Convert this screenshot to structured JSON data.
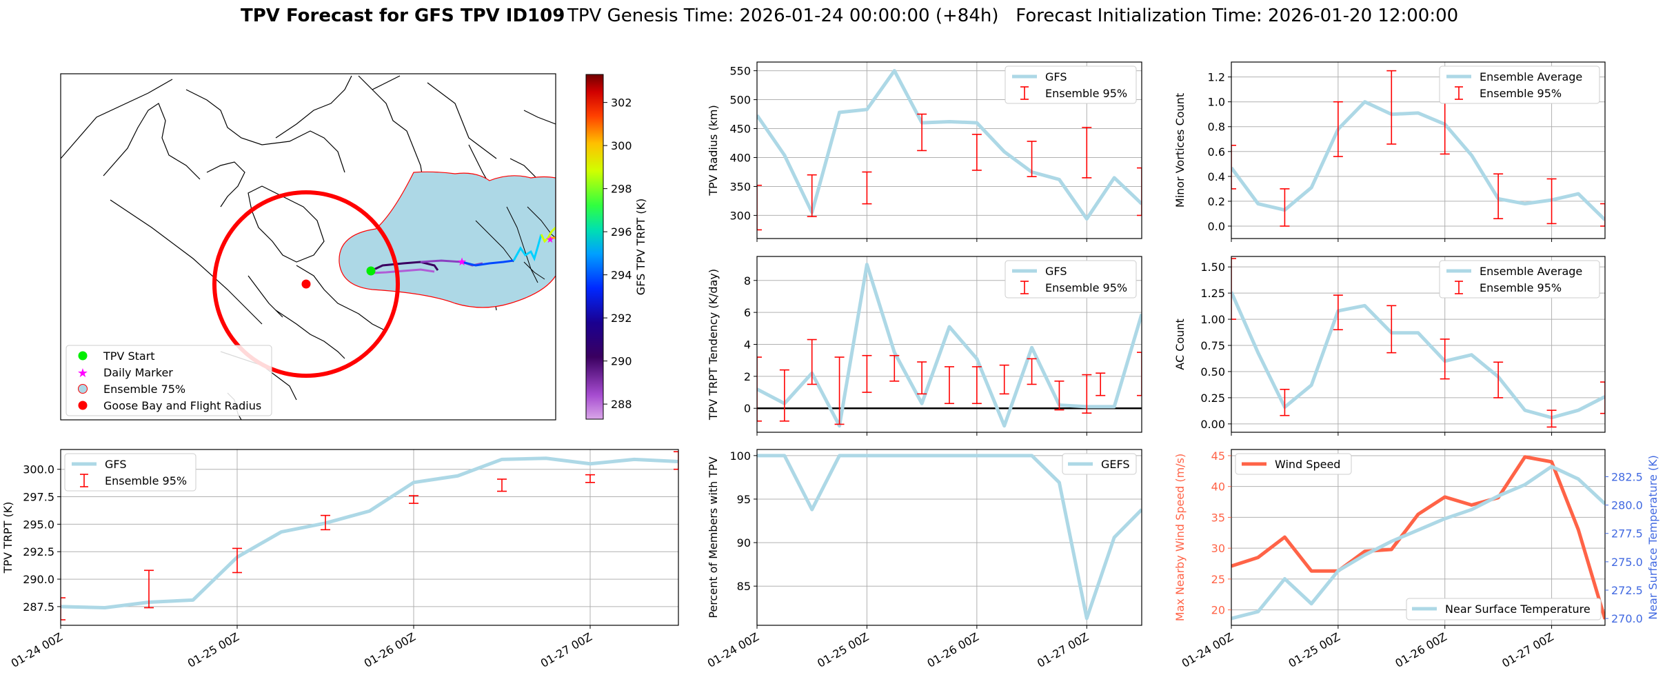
{
  "header": {
    "title_bold": "TPV Forecast for GFS TPV ID109",
    "title_rest": "TPV Genesis Time: 2026-01-24 00:00:00 (+84h)   Forecast Initialization Time: 2026-01-20 12:00:00"
  },
  "colors": {
    "gfs_line": "#add8e6",
    "ensemble_bar": "#ff0000",
    "wind_line": "#ff6347",
    "temp_axis": "#4169e1",
    "goose_bay": "#ff0000",
    "tpv_start": "#00ee00",
    "daily_marker": "#ff00ff",
    "ensemble_fill": "#add8e6"
  },
  "map": {
    "legend": {
      "tpv_start": "TPV Start",
      "daily_marker": "Daily Marker",
      "ensemble_75": "Ensemble 75%",
      "goose_bay": "Goose Bay and Flight Radius"
    },
    "colorbar": {
      "label": "GFS TPV TRPT (K)",
      "ticks": [
        "288",
        "290",
        "292",
        "294",
        "296",
        "298",
        "300",
        "302"
      ],
      "vmin": 287.3,
      "vmax": 303.3
    }
  },
  "x_ticks": [
    "01-24 00Z",
    "01-25 00Z",
    "01-26 00Z",
    "01-27 00Z"
  ],
  "chart_data": [
    {
      "id": "radius",
      "type": "line",
      "ylabel": "TPV Radius (km)",
      "ylim": [
        260,
        565
      ],
      "yticks": [
        "300",
        "350",
        "400",
        "450",
        "500",
        "550"
      ],
      "ytick_values": [
        300,
        350,
        400,
        450,
        500,
        550
      ],
      "x": [
        0,
        0.25,
        0.5,
        0.75,
        1,
        1.25,
        1.5,
        1.75,
        2,
        2.25,
        2.5,
        2.75,
        3,
        3.25,
        3.5
      ],
      "series": [
        {
          "name": "GFS",
          "values": [
            473,
            404,
            305,
            478,
            483,
            550,
            460,
            462,
            460,
            410,
            375,
            362,
            294,
            365,
            320
          ]
        }
      ],
      "ensemble": {
        "name": "Ensemble 95%",
        "x": [
          0,
          0.5,
          1,
          1.5,
          2,
          2.5,
          3,
          3.5
        ],
        "lo": [
          275,
          298,
          320,
          412,
          378,
          367,
          365,
          300
        ],
        "hi": [
          352,
          370,
          375,
          475,
          440,
          428,
          452,
          382
        ]
      }
    },
    {
      "id": "minor",
      "type": "line",
      "ylabel": "Minor Vortices Count",
      "ylim": [
        -0.1,
        1.32
      ],
      "yticks": [
        "0.0",
        "0.2",
        "0.4",
        "0.6",
        "0.8",
        "1.0",
        "1.2"
      ],
      "ytick_values": [
        0,
        0.2,
        0.4,
        0.6,
        0.8,
        1.0,
        1.2
      ],
      "x": [
        0,
        0.25,
        0.5,
        0.75,
        1,
        1.25,
        1.5,
        1.75,
        2,
        2.25,
        2.5,
        2.75,
        3,
        3.25,
        3.5
      ],
      "series": [
        {
          "name": "Ensemble Average",
          "values": [
            0.47,
            0.18,
            0.13,
            0.31,
            0.78,
            1.0,
            0.9,
            0.91,
            0.82,
            0.57,
            0.22,
            0.18,
            0.21,
            0.26,
            0.05
          ]
        }
      ],
      "ensemble": {
        "name": "Ensemble 95%",
        "x": [
          0,
          0.5,
          1,
          1.5,
          2,
          2.5,
          3,
          3.5
        ],
        "lo": [
          0.3,
          0.0,
          0.56,
          0.66,
          0.58,
          0.06,
          0.02,
          0.0
        ],
        "hi": [
          0.65,
          0.3,
          1.0,
          1.25,
          1.01,
          0.42,
          0.38,
          0.18
        ]
      }
    },
    {
      "id": "tendency",
      "type": "line",
      "ylabel": "TPV TRPT Tendency (K/day)",
      "ylim": [
        -1.5,
        9.5
      ],
      "yticks": [
        "0",
        "2",
        "4",
        "6",
        "8"
      ],
      "ytick_values": [
        0,
        2,
        4,
        6,
        8
      ],
      "zero_line": true,
      "x": [
        0,
        0.25,
        0.5,
        0.75,
        1,
        1.25,
        1.5,
        1.75,
        2,
        2.25,
        2.5,
        2.75,
        3,
        3.25,
        3.5
      ],
      "series": [
        {
          "name": "GFS",
          "values": [
            1.2,
            0.3,
            2.2,
            -1.1,
            9.0,
            3.5,
            0.3,
            5.1,
            3.1,
            -1.1,
            3.8,
            0.2,
            0.1,
            0.1,
            5.9
          ]
        }
      ],
      "ensemble": {
        "name": "Ensemble 95%",
        "x": [
          0,
          0.25,
          0.5,
          0.75,
          1,
          1.25,
          1.5,
          1.75,
          2,
          2.25,
          2.5,
          2.75,
          3,
          3.125,
          3.5
        ],
        "lo": [
          -0.8,
          -0.8,
          1.5,
          -1.0,
          1.0,
          1.7,
          0.9,
          0.3,
          0.3,
          0.9,
          1.5,
          -0.1,
          -0.3,
          0.8,
          0.8
        ],
        "hi": [
          3.2,
          2.4,
          4.3,
          3.2,
          3.3,
          3.3,
          2.9,
          2.6,
          2.6,
          2.7,
          3.1,
          1.7,
          2.1,
          2.2,
          3.5
        ]
      }
    },
    {
      "id": "ac",
      "type": "line",
      "ylabel": "AC Count",
      "ylim": [
        -0.08,
        1.6
      ],
      "yticks": [
        "0.00",
        "0.25",
        "0.50",
        "0.75",
        "1.00",
        "1.25",
        "1.50"
      ],
      "ytick_values": [
        0,
        0.25,
        0.5,
        0.75,
        1.0,
        1.25,
        1.5
      ],
      "x": [
        0,
        0.25,
        0.5,
        0.75,
        1,
        1.25,
        1.5,
        1.75,
        2,
        2.25,
        2.5,
        2.75,
        3,
        3.25,
        3.5
      ],
      "series": [
        {
          "name": "Ensemble Average",
          "values": [
            1.26,
            0.68,
            0.16,
            0.37,
            1.08,
            1.13,
            0.87,
            0.87,
            0.6,
            0.66,
            0.45,
            0.13,
            0.06,
            0.13,
            0.26
          ]
        }
      ],
      "ensemble": {
        "name": "Ensemble 95%",
        "x": [
          0,
          0.5,
          1,
          1.5,
          2,
          2.5,
          3,
          3.5
        ],
        "lo": [
          1.0,
          0.08,
          0.9,
          0.68,
          0.43,
          0.25,
          -0.03,
          0.1
        ],
        "hi": [
          1.58,
          0.33,
          1.23,
          1.13,
          0.81,
          0.59,
          0.13,
          0.4
        ]
      }
    },
    {
      "id": "trpt",
      "type": "line",
      "ylabel": "TPV TRPT (K)",
      "ylim": [
        285.8,
        301.8
      ],
      "yticks": [
        "287.5",
        "290.0",
        "292.5",
        "295.0",
        "297.5",
        "300.0"
      ],
      "ytick_values": [
        287.5,
        290,
        292.5,
        295,
        297.5,
        300
      ],
      "x": [
        0,
        0.25,
        0.5,
        0.75,
        1,
        1.25,
        1.5,
        1.75,
        2,
        2.25,
        2.5,
        2.75,
        3,
        3.25,
        3.5
      ],
      "series": [
        {
          "name": "GFS",
          "values": [
            287.5,
            287.4,
            287.9,
            288.1,
            292.0,
            294.3,
            295.1,
            296.2,
            298.8,
            299.4,
            300.9,
            301.0,
            300.5,
            300.9,
            300.7
          ]
        }
      ],
      "ensemble": {
        "name": "Ensemble 95%",
        "x": [
          0,
          0.5,
          1,
          1.5,
          2,
          2.5,
          3,
          3.5
        ],
        "lo": [
          286.3,
          287.4,
          290.6,
          294.5,
          296.9,
          298.0,
          298.8,
          300.0
        ],
        "hi": [
          288.3,
          290.8,
          292.8,
          295.8,
          297.6,
          299.1,
          299.5,
          301.6
        ]
      }
    },
    {
      "id": "percent",
      "type": "line",
      "ylabel": "Percent of Members with TPV",
      "ylim": [
        80.5,
        100.7
      ],
      "yticks": [
        "85",
        "90",
        "95",
        "100"
      ],
      "ytick_values": [
        85,
        90,
        95,
        100
      ],
      "x": [
        0,
        0.25,
        0.5,
        0.75,
        1,
        1.25,
        1.5,
        1.75,
        2,
        2.25,
        2.5,
        2.75,
        3,
        3.25,
        3.5
      ],
      "series": [
        {
          "name": "GEFS",
          "values": [
            100,
            100,
            93.8,
            100,
            100,
            100,
            100,
            100,
            100,
            100,
            100,
            96.9,
            81.3,
            90.6,
            93.8
          ]
        }
      ]
    },
    {
      "id": "wind_temp",
      "type": "line",
      "ylabel": "Max Nearby Wind Speed (m/s)",
      "ylim": [
        17.5,
        46.0
      ],
      "yticks": [
        "20",
        "25",
        "30",
        "35",
        "40",
        "45"
      ],
      "ytick_values": [
        20,
        25,
        30,
        35,
        40,
        45
      ],
      "y2label": "Near Surface Temperature (K)",
      "y2lim": [
        269.4,
        284.9
      ],
      "y2ticks": [
        "270.0",
        "272.5",
        "275.0",
        "277.5",
        "280.0",
        "282.5"
      ],
      "y2tick_values": [
        270,
        272.5,
        275,
        277.5,
        280,
        282.5
      ],
      "x": [
        0,
        0.25,
        0.5,
        0.75,
        1,
        1.25,
        1.5,
        1.75,
        2,
        2.25,
        2.5,
        2.75,
        3,
        3.25,
        3.5
      ],
      "series": [
        {
          "name": "Wind Speed",
          "axis": "left",
          "values": [
            27.1,
            28.5,
            31.8,
            26.3,
            26.3,
            29.5,
            29.8,
            35.5,
            38.3,
            37.0,
            38.2,
            44.8,
            44.0,
            33.0,
            18.5
          ]
        },
        {
          "name": "Near Surface Temperature",
          "axis": "right",
          "values": [
            270.0,
            270.6,
            273.5,
            271.3,
            274.2,
            275.6,
            276.8,
            277.8,
            278.8,
            279.6,
            280.8,
            281.8,
            283.4,
            282.3,
            280.1
          ]
        }
      ]
    }
  ]
}
